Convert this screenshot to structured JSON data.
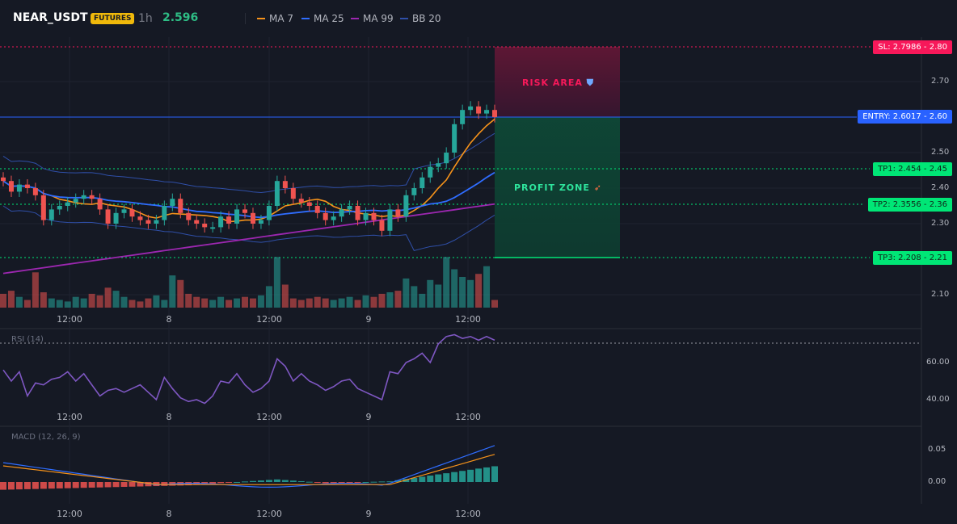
{
  "header": {
    "symbol": "NEAR_USDT",
    "badge": "FUTURES",
    "timeframe": "1h",
    "price": "2.596",
    "legend": [
      {
        "label": "MA 7",
        "color": "#f7931a"
      },
      {
        "label": "MA 25",
        "color": "#2f6dff"
      },
      {
        "label": "MA 99",
        "color": "#9c27b0"
      },
      {
        "label": "BB 20",
        "color": "#2f4fa8"
      }
    ]
  },
  "price_axis": [
    "2.70",
    "2.50",
    "2.40",
    "2.30",
    "2.10"
  ],
  "levels": {
    "sl": "SL: 2.7986 - 2.80",
    "entry": "ENTRY: 2.6017 - 2.60",
    "tp1": "TP1: 2.454 - 2.45",
    "tp2": "TP2: 2.3556 - 2.36",
    "tp3": "TP3: 2.208 - 2.21"
  },
  "zones": {
    "risk": "RISK AREA",
    "profit": "PROFIT ZONE"
  },
  "time_labels": [
    "12:00",
    "8",
    "12:00",
    "9",
    "12:00"
  ],
  "rsi": {
    "label": "RSI (14)",
    "axis": [
      "60.00",
      "40.00"
    ]
  },
  "macd": {
    "label": "MACD (12, 26, 9)",
    "axis": [
      "0.05",
      "0.00"
    ]
  },
  "colors": {
    "up": "#26a69a",
    "down": "#ef5350",
    "sl": "#f7185a",
    "entry": "#2962ff",
    "tp": "#00e676",
    "rsi": "#7e57c2"
  }
}
